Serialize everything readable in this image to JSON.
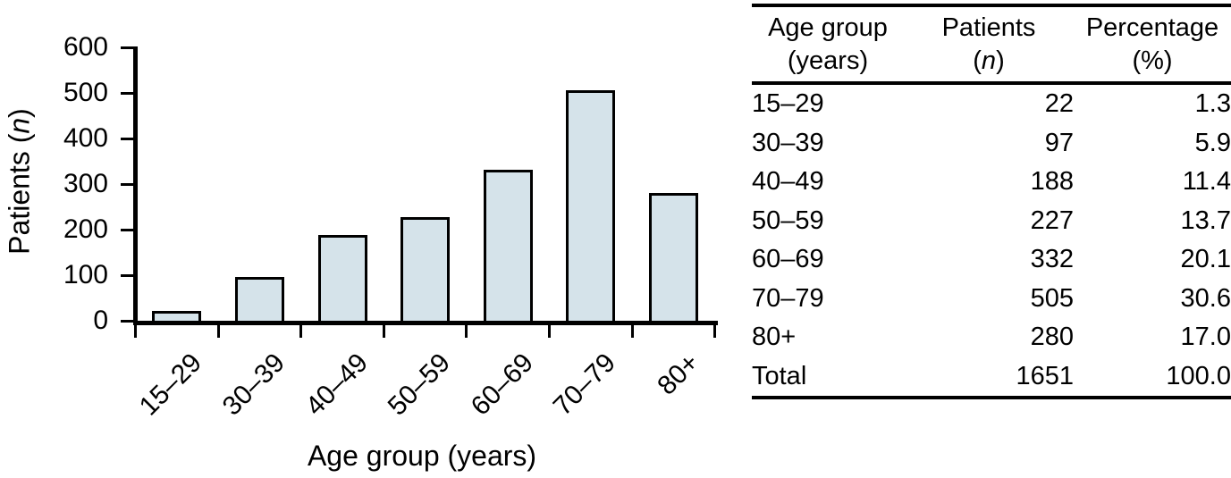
{
  "chart_data": {
    "type": "bar",
    "categories": [
      "15–29",
      "30–39",
      "40–49",
      "50–59",
      "60–69",
      "70–79",
      "80+"
    ],
    "values": [
      22,
      97,
      188,
      227,
      332,
      505,
      280
    ],
    "xlabel": "Age group (years)",
    "ylabel": "Patients (n)",
    "ylabel_parts": {
      "prefix": "Patients (",
      "italic": "n",
      "suffix": ")"
    },
    "ylim": [
      0,
      600
    ],
    "yticks": [
      0,
      100,
      200,
      300,
      400,
      500,
      600
    ],
    "grid": false,
    "legend": false,
    "bar_fill_color": "#d5e3ea",
    "bar_border_color": "#000000",
    "axis_color": "#000000"
  },
  "table": {
    "header": {
      "col1_line1": "Age group",
      "col1_line2": "(years)",
      "col2_line1": "Patients",
      "col2_line2_prefix": "(",
      "col2_line2_italic": "n",
      "col2_line2_suffix": ")",
      "col3_line1": "Percentage",
      "col3_line2": "(%)"
    },
    "rows": [
      [
        "15–29",
        "22",
        "1.3"
      ],
      [
        "30–39",
        "97",
        "5.9"
      ],
      [
        "40–49",
        "188",
        "11.4"
      ],
      [
        "50–59",
        "227",
        "13.7"
      ],
      [
        "60–69",
        "332",
        "20.1"
      ],
      [
        "70–79",
        "505",
        "30.6"
      ],
      [
        "80+",
        "280",
        "17.0"
      ],
      [
        "Total",
        "1651",
        "100.0"
      ]
    ]
  }
}
